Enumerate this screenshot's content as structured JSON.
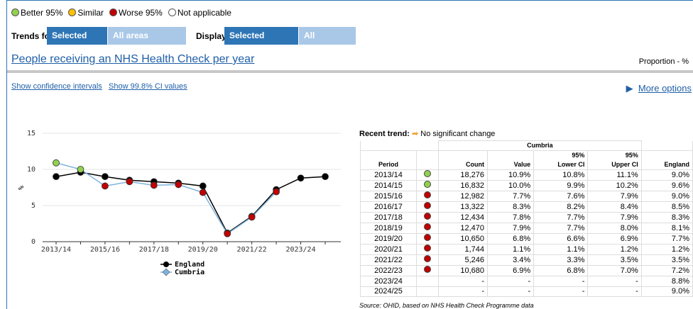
{
  "legend": [
    {
      "label": "Better 95%",
      "color": "#92d050"
    },
    {
      "label": "Similar",
      "color": "#ffc000"
    },
    {
      "label": "Worse 95%",
      "color": "#c00000"
    },
    {
      "label": "Not applicable",
      "color": null
    }
  ],
  "controls": {
    "trends_label": "Trends for",
    "trends_options": [
      "Selected area",
      "All areas (grouped)"
    ],
    "display_label": "Display",
    "display_options": [
      "Selected indicator",
      "All indicators"
    ]
  },
  "indicator": {
    "title": "People receiving an NHS Health Check per year",
    "unit": "Proportion - %"
  },
  "links": [
    "Show confidence intervals",
    "Show 99.8% CI values"
  ],
  "more_options": "More options",
  "chart_data": {
    "type": "line",
    "y_label": "%",
    "categories": [
      "2013/14",
      null,
      "2015/16",
      null,
      "2017/18",
      null,
      "2019/20",
      null,
      "2021/22",
      null,
      "2023/24",
      null
    ],
    "ylim": [
      0,
      15
    ],
    "yticks": [
      0,
      5,
      10,
      15
    ],
    "grid": true,
    "series": [
      {
        "name": "England",
        "color": "#000000",
        "marker_color": "#000000",
        "values": [
          9.0,
          9.6,
          9.0,
          8.5,
          8.3,
          8.1,
          7.7,
          1.2,
          3.5,
          7.2,
          8.8,
          9.0
        ]
      },
      {
        "name": "Cumbria",
        "color": "#7fb3dd",
        "marker_colors": [
          "#92d050",
          "#92d050",
          "#c00000",
          "#c00000",
          "#c00000",
          "#c00000",
          "#c00000",
          "#c00000",
          "#c00000",
          "#c00000",
          null,
          null
        ],
        "values": [
          10.9,
          10.0,
          7.7,
          8.3,
          7.8,
          7.9,
          6.8,
          1.1,
          3.4,
          6.9,
          null,
          null
        ]
      }
    ]
  },
  "recent_trend": {
    "label": "Recent trend:",
    "text": "No significant change"
  },
  "table": {
    "area": "Cumbria",
    "headers": [
      "Period",
      "Count",
      "Value",
      "95%\nLower CI",
      "95%\nUpper CI",
      "England"
    ],
    "rows": [
      {
        "cells": [
          "2013/14",
          "18,276",
          "10.9%",
          "10.8%",
          "11.1%",
          "9.0%"
        ],
        "color": "#92d050"
      },
      {
        "cells": [
          "2014/15",
          "16,832",
          "10.0%",
          "9.9%",
          "10.2%",
          "9.6%"
        ],
        "color": "#92d050"
      },
      {
        "cells": [
          "2015/16",
          "12,982",
          "7.7%",
          "7.6%",
          "7.9%",
          "9.0%"
        ],
        "color": "#c00000"
      },
      {
        "cells": [
          "2016/17",
          "13,322",
          "8.3%",
          "8.2%",
          "8.4%",
          "8.5%"
        ],
        "color": "#c00000"
      },
      {
        "cells": [
          "2017/18",
          "12,434",
          "7.8%",
          "7.7%",
          "7.9%",
          "8.3%"
        ],
        "color": "#c00000"
      },
      {
        "cells": [
          "2018/19",
          "12,470",
          "7.9%",
          "7.7%",
          "8.0%",
          "8.1%"
        ],
        "color": "#c00000"
      },
      {
        "cells": [
          "2019/20",
          "10,650",
          "6.8%",
          "6.6%",
          "6.9%",
          "7.7%"
        ],
        "color": "#c00000"
      },
      {
        "cells": [
          "2020/21",
          "1,744",
          "1.1%",
          "1.1%",
          "1.2%",
          "1.2%"
        ],
        "color": "#c00000"
      },
      {
        "cells": [
          "2021/22",
          "5,246",
          "3.4%",
          "3.3%",
          "3.5%",
          "3.5%"
        ],
        "color": "#c00000"
      },
      {
        "cells": [
          "2022/23",
          "10,680",
          "6.9%",
          "6.8%",
          "7.0%",
          "7.2%"
        ],
        "color": "#c00000"
      },
      {
        "cells": [
          "2023/24",
          "-",
          "-",
          "-",
          "-",
          "8.8%"
        ],
        "color": null
      },
      {
        "cells": [
          "2024/25",
          "-",
          "-",
          "-",
          "-",
          "9.0%"
        ],
        "color": null
      }
    ]
  },
  "source": "Source: OHID, based on NHS Health Check Programme data"
}
